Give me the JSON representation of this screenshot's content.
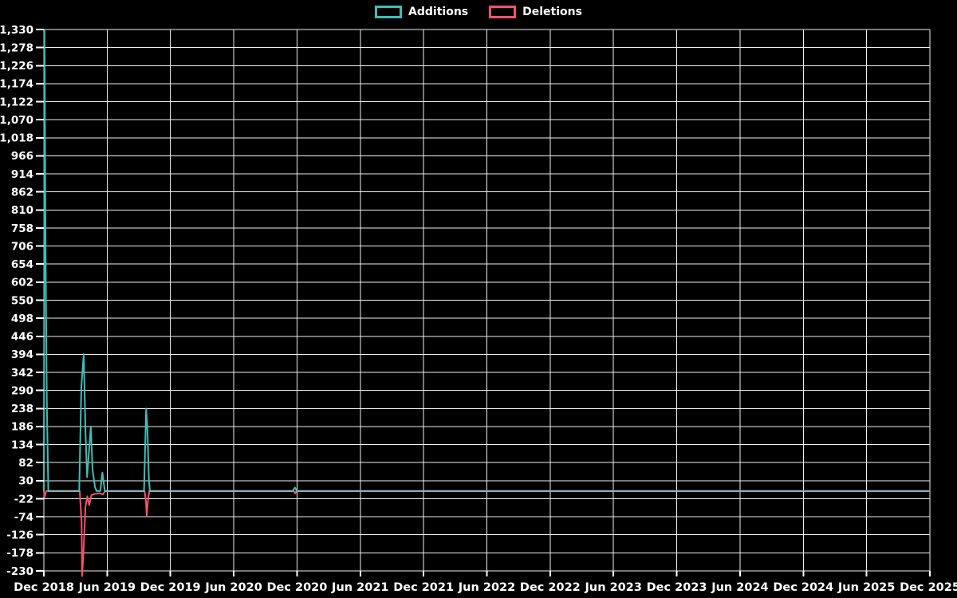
{
  "legend": {
    "items": [
      {
        "label": "Additions"
      },
      {
        "label": "Deletions"
      }
    ]
  },
  "colors": {
    "background": "#000000",
    "grid": "#f0f0f0",
    "axis_text": "#ffffff",
    "tick_mark": "#ffffff",
    "additions": "#3fbdb7",
    "deletions": "#f2526f",
    "baseline_overlap": "#8fb0b2"
  },
  "chart_data": {
    "type": "line",
    "title": "",
    "xlabel": "",
    "ylabel": "",
    "grid": true,
    "legend_position": "top-center",
    "x_axis": {
      "unit": "months since Dec 2018",
      "min": 0,
      "max": 84,
      "tick_every_months": 6,
      "tick_labels": [
        "Dec 2018",
        "Jun 2019",
        "Dec 2019",
        "Jun 2020",
        "Dec 2020",
        "Jun 2021",
        "Dec 2021",
        "Jun 2022",
        "Dec 2022",
        "Jun 2023",
        "Dec 2023",
        "Jun 2024",
        "Dec 2024",
        "Jun 2025",
        "Dec 2025"
      ]
    },
    "y_axis": {
      "min": -230,
      "max": 1330,
      "tick_step": 52,
      "tick_labels": [
        "1,330",
        "1,278",
        "1,226",
        "1,174",
        "1,122",
        "1,070",
        "1,018",
        "966",
        "914",
        "862",
        "810",
        "758",
        "706",
        "654",
        "602",
        "550",
        "498",
        "446",
        "394",
        "342",
        "290",
        "238",
        "186",
        "134",
        "82",
        "30",
        "-22",
        "-74",
        "-126",
        "-178",
        "-230"
      ]
    },
    "series": [
      {
        "name": "Additions",
        "color_key": "additions",
        "points": [
          [
            0,
            0
          ],
          [
            0.06,
            1330
          ],
          [
            0.16,
            700
          ],
          [
            0.28,
            260
          ],
          [
            0.42,
            0
          ],
          [
            3.35,
            0
          ],
          [
            3.55,
            300
          ],
          [
            3.78,
            395
          ],
          [
            3.95,
            170
          ],
          [
            4.1,
            40
          ],
          [
            4.45,
            186
          ],
          [
            4.62,
            60
          ],
          [
            4.85,
            12
          ],
          [
            5.0,
            0
          ],
          [
            5.35,
            0
          ],
          [
            5.55,
            53
          ],
          [
            5.78,
            0
          ],
          [
            9.5,
            0
          ],
          [
            9.7,
            238
          ],
          [
            9.82,
            175
          ],
          [
            9.95,
            40
          ],
          [
            10.05,
            0
          ],
          [
            23.6,
            0
          ],
          [
            23.8,
            10
          ],
          [
            24.0,
            0
          ],
          [
            84,
            0
          ]
        ]
      },
      {
        "name": "Deletions",
        "color_key": "deletions",
        "points": [
          [
            0,
            0
          ],
          [
            0.07,
            -18
          ],
          [
            0.22,
            0
          ],
          [
            3.4,
            0
          ],
          [
            3.58,
            -90
          ],
          [
            3.62,
            -245
          ],
          [
            3.75,
            -180
          ],
          [
            3.95,
            -45
          ],
          [
            4.12,
            -15
          ],
          [
            4.3,
            -40
          ],
          [
            4.5,
            -12
          ],
          [
            4.85,
            -8
          ],
          [
            5.3,
            -6
          ],
          [
            5.6,
            -10
          ],
          [
            5.8,
            0
          ],
          [
            9.55,
            0
          ],
          [
            9.68,
            -30
          ],
          [
            9.75,
            -70
          ],
          [
            9.9,
            -18
          ],
          [
            10.0,
            0
          ],
          [
            23.7,
            0
          ],
          [
            23.82,
            -7
          ],
          [
            23.95,
            0
          ],
          [
            84,
            0
          ]
        ]
      }
    ]
  }
}
